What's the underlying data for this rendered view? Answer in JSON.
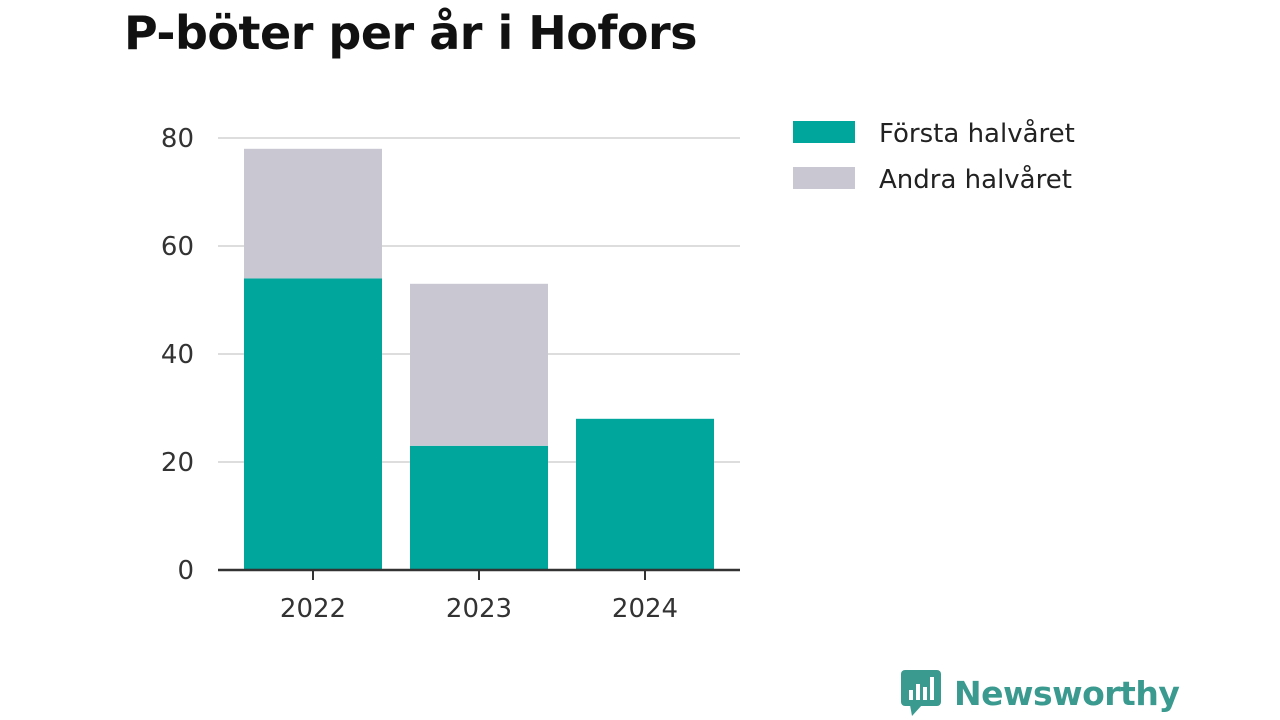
{
  "title": "P-böter per år i Hofors",
  "brand": {
    "name": "Newsworthy",
    "icon": "newsworthy-logo-icon"
  },
  "colors": {
    "first_half": "#00a59b",
    "second_half": "#c9c8d2",
    "grid": "#dddddd",
    "axis": "#333333",
    "brand": "#3b9a8f"
  },
  "chart_data": {
    "type": "bar",
    "stacked": true,
    "title": "P-böter per år i Hofors",
    "categories": [
      "2022",
      "2023",
      "2024"
    ],
    "series": [
      {
        "name": "Första halvåret",
        "values": [
          54,
          23,
          28
        ],
        "color": "#00a59b"
      },
      {
        "name": "Andra halvåret",
        "values": [
          24,
          30,
          0
        ],
        "color": "#c9c8d2"
      }
    ],
    "ylim": [
      0,
      80
    ],
    "yticks": [
      0,
      20,
      40,
      60,
      80
    ],
    "grid": true,
    "legend_position": "right"
  }
}
